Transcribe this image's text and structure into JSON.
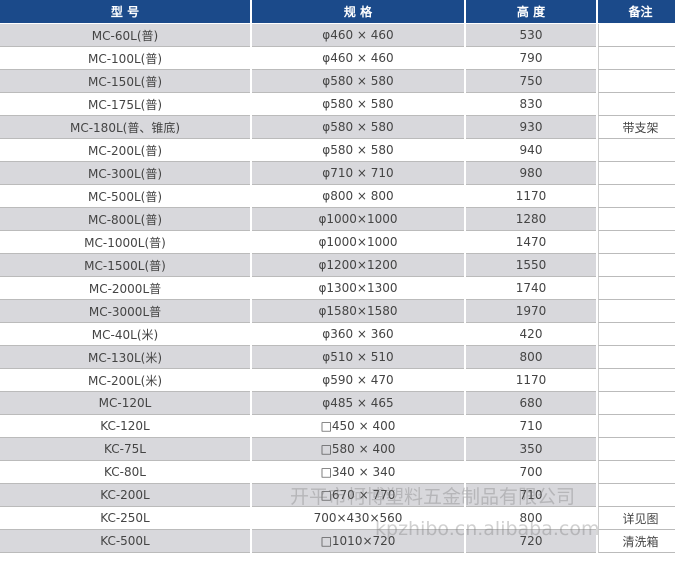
{
  "table": {
    "header": [
      "型 号",
      "规 格",
      "高 度",
      "备注"
    ],
    "rows": [
      [
        "MC-60L(普)",
        "φ460 × 460",
        "530",
        null
      ],
      [
        "MC-100L(普)",
        "φ460 × 460",
        "790",
        null
      ],
      [
        "MC-150L(普)",
        "φ580 × 580",
        "750",
        null
      ],
      [
        "MC-175L(普)",
        "φ580 × 580",
        "830",
        null
      ],
      [
        "MC-180L(普、锥底)",
        "φ580 × 580",
        "930",
        "带支架"
      ],
      [
        "MC-200L(普)",
        "φ580 × 580",
        "940",
        null
      ],
      [
        "MC-300L(普)",
        "φ710 × 710",
        "980",
        null
      ],
      [
        "MC-500L(普)",
        "φ800 × 800",
        "1170",
        null
      ],
      [
        "MC-800L(普)",
        "φ1000×1000",
        "1280",
        null
      ],
      [
        "MC-1000L(普)",
        "φ1000×1000",
        "1470",
        null
      ],
      [
        "MC-1500L(普)",
        "φ1200×1200",
        "1550",
        null
      ],
      [
        "MC-2000L普",
        "φ1300×1300",
        "1740",
        null
      ],
      [
        "MC-3000L普",
        "φ1580×1580",
        "1970",
        null
      ],
      [
        "MC-40L(米)",
        "φ360 × 360",
        "420",
        null
      ],
      [
        "MC-130L(米)",
        "φ510 × 510",
        "800",
        null
      ],
      [
        "MC-200L(米)",
        "φ590 × 470",
        "1170",
        null
      ],
      [
        "MC-120L",
        "φ485 × 465",
        "680",
        null
      ],
      [
        "KC-120L",
        "□450 × 400",
        "710",
        null
      ],
      [
        "KC-75L",
        "□580 × 400",
        "350",
        null
      ],
      [
        "KC-80L",
        "□340 × 340",
        "700",
        null
      ],
      [
        "KC-200L",
        "□670 × 770",
        "710",
        null
      ],
      [
        "KC-250L",
        "700×430×560",
        "800",
        "详见图"
      ],
      [
        "KC-500L",
        "□1010×720",
        "720",
        "清洗箱"
      ]
    ]
  },
  "watermark": {
    "company": "开平市柯博塑料五金制品有限公司",
    "url": "kpzhibo.cn.alibaba.com"
  }
}
